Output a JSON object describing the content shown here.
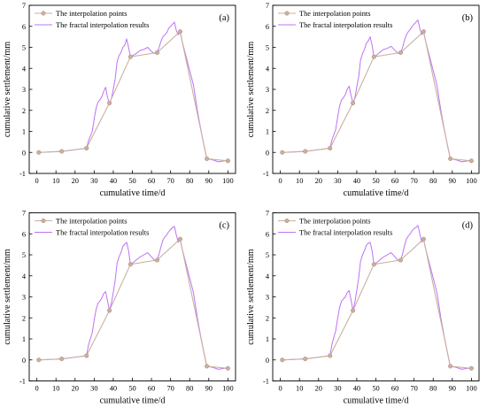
{
  "colors": {
    "points": "#c9b09f",
    "points_stroke": "#a88c7b",
    "fractal": "#bd73f5",
    "axis": "#000000",
    "background": "#ffffff"
  },
  "chart_data": [
    {
      "type": "line",
      "panel_label": "(a)",
      "xlabel": "cumulative time/d",
      "ylabel": "cumulative settlement/mm",
      "xlim": [
        -4,
        104
      ],
      "ylim": [
        -1,
        7
      ],
      "xticks": [
        0,
        10,
        20,
        30,
        40,
        50,
        60,
        70,
        80,
        90,
        100
      ],
      "yticks": [
        -1,
        0,
        1,
        2,
        3,
        4,
        5,
        6,
        7
      ],
      "legend_position": "top-left",
      "grid": false,
      "series": [
        {
          "name": "The interpolation points",
          "marker": "circle",
          "x": [
            1,
            13,
            26,
            38,
            49,
            63,
            75,
            89,
            100
          ],
          "y": [
            0.0,
            0.05,
            0.2,
            2.35,
            4.55,
            4.75,
            5.75,
            -0.3,
            -0.4
          ]
        },
        {
          "name": "The fractal interpolation results",
          "marker": "none",
          "x": [
            1,
            13,
            26,
            27,
            29,
            30,
            31,
            32,
            33,
            34,
            35,
            36,
            37,
            38,
            39,
            40,
            41,
            42,
            43,
            44,
            45,
            46,
            47,
            48,
            49,
            50,
            52,
            54,
            56,
            58,
            60,
            62,
            63,
            64,
            65,
            66,
            67,
            68,
            69,
            70,
            71,
            72,
            73,
            74,
            75,
            76,
            78,
            80,
            82,
            84,
            86,
            88,
            89,
            92,
            95,
            98,
            100
          ],
          "y": [
            0.0,
            0.05,
            0.2,
            0.55,
            1.0,
            1.6,
            2.1,
            2.4,
            2.5,
            2.65,
            2.9,
            3.1,
            2.6,
            2.35,
            2.55,
            3.0,
            3.5,
            4.3,
            4.6,
            4.75,
            5.0,
            5.1,
            5.4,
            5.0,
            4.55,
            4.6,
            4.7,
            4.85,
            4.9,
            5.0,
            4.8,
            4.7,
            4.75,
            5.0,
            5.3,
            5.5,
            5.6,
            5.7,
            5.9,
            6.0,
            6.1,
            6.2,
            5.8,
            5.6,
            5.75,
            5.3,
            4.6,
            3.9,
            3.2,
            2.0,
            1.0,
            0.1,
            -0.3,
            -0.35,
            -0.45,
            -0.4,
            -0.4
          ]
        }
      ]
    },
    {
      "type": "line",
      "panel_label": "(b)",
      "xlabel": "cumulative time/d",
      "ylabel": "cumulative settlement/mm",
      "xlim": [
        -4,
        104
      ],
      "ylim": [
        -1,
        7
      ],
      "xticks": [
        0,
        10,
        20,
        30,
        40,
        50,
        60,
        70,
        80,
        90,
        100
      ],
      "yticks": [
        -1,
        0,
        1,
        2,
        3,
        4,
        5,
        6,
        7
      ],
      "legend_position": "top-left",
      "grid": false,
      "series": [
        {
          "name": "The interpolation points",
          "marker": "circle",
          "x": [
            1,
            13,
            26,
            38,
            49,
            63,
            75,
            89,
            100
          ],
          "y": [
            0.0,
            0.05,
            0.2,
            2.35,
            4.55,
            4.75,
            5.75,
            -0.3,
            -0.4
          ]
        },
        {
          "name": "The fractal interpolation results",
          "marker": "none",
          "x": [
            1,
            13,
            26,
            27,
            29,
            30,
            31,
            32,
            33,
            34,
            35,
            36,
            37,
            38,
            39,
            40,
            41,
            42,
            43,
            44,
            45,
            46,
            47,
            48,
            49,
            50,
            52,
            54,
            56,
            58,
            60,
            62,
            63,
            64,
            65,
            66,
            67,
            68,
            69,
            70,
            71,
            72,
            73,
            74,
            75,
            76,
            78,
            80,
            82,
            84,
            86,
            88,
            89,
            92,
            95,
            98,
            100
          ],
          "y": [
            0.0,
            0.05,
            0.2,
            0.6,
            1.1,
            1.7,
            2.2,
            2.5,
            2.6,
            2.75,
            3.0,
            3.15,
            2.7,
            2.35,
            2.6,
            3.1,
            3.6,
            4.4,
            4.7,
            4.9,
            5.2,
            5.3,
            5.5,
            5.1,
            4.55,
            4.6,
            4.75,
            4.9,
            4.95,
            5.05,
            4.85,
            4.7,
            4.75,
            5.0,
            5.35,
            5.6,
            5.75,
            5.85,
            6.0,
            6.1,
            6.2,
            6.3,
            5.9,
            5.6,
            5.75,
            5.3,
            4.6,
            3.9,
            3.2,
            2.0,
            1.0,
            0.1,
            -0.3,
            -0.35,
            -0.45,
            -0.4,
            -0.4
          ]
        }
      ]
    },
    {
      "type": "line",
      "panel_label": "(c)",
      "xlabel": "cumulative time/d",
      "ylabel": "cumulative settlement/mm",
      "xlim": [
        -4,
        104
      ],
      "ylim": [
        -1,
        7
      ],
      "xticks": [
        0,
        10,
        20,
        30,
        40,
        50,
        60,
        70,
        80,
        90,
        100
      ],
      "yticks": [
        -1,
        0,
        1,
        2,
        3,
        4,
        5,
        6,
        7
      ],
      "legend_position": "top-left",
      "grid": false,
      "series": [
        {
          "name": "The interpolation points",
          "marker": "circle",
          "x": [
            1,
            13,
            26,
            38,
            49,
            63,
            75,
            89,
            100
          ],
          "y": [
            0.0,
            0.05,
            0.2,
            2.35,
            4.55,
            4.75,
            5.75,
            -0.3,
            -0.4
          ]
        },
        {
          "name": "The fractal interpolation results",
          "marker": "none",
          "x": [
            1,
            13,
            26,
            27,
            29,
            30,
            31,
            32,
            33,
            34,
            35,
            36,
            37,
            38,
            39,
            40,
            41,
            42,
            43,
            44,
            45,
            46,
            47,
            48,
            49,
            50,
            52,
            54,
            56,
            58,
            60,
            62,
            63,
            64,
            65,
            66,
            67,
            68,
            69,
            70,
            71,
            72,
            73,
            74,
            75,
            76,
            78,
            80,
            82,
            84,
            86,
            88,
            89,
            92,
            95,
            98,
            100
          ],
          "y": [
            0.0,
            0.05,
            0.2,
            0.7,
            1.3,
            1.9,
            2.4,
            2.7,
            2.8,
            2.95,
            3.15,
            3.25,
            2.8,
            2.35,
            2.7,
            3.2,
            3.8,
            4.6,
            4.9,
            5.1,
            5.4,
            5.5,
            5.6,
            5.2,
            4.55,
            4.6,
            4.75,
            4.9,
            5.0,
            5.1,
            4.9,
            4.7,
            4.75,
            5.05,
            5.4,
            5.7,
            5.85,
            5.95,
            6.1,
            6.2,
            6.3,
            6.35,
            5.95,
            5.6,
            5.75,
            5.3,
            4.6,
            3.9,
            3.2,
            2.0,
            1.0,
            0.1,
            -0.3,
            -0.35,
            -0.45,
            -0.4,
            -0.4
          ]
        }
      ]
    },
    {
      "type": "line",
      "panel_label": "(d)",
      "xlabel": "cumulative time/d",
      "ylabel": "cumulative settlement/mm",
      "xlim": [
        -4,
        104
      ],
      "ylim": [
        -1,
        7
      ],
      "xticks": [
        0,
        10,
        20,
        30,
        40,
        50,
        60,
        70,
        80,
        90,
        100
      ],
      "yticks": [
        -1,
        0,
        1,
        2,
        3,
        4,
        5,
        6,
        7
      ],
      "legend_position": "top-left",
      "grid": false,
      "series": [
        {
          "name": "The interpolation points",
          "marker": "circle",
          "x": [
            1,
            13,
            26,
            38,
            49,
            63,
            75,
            89,
            100
          ],
          "y": [
            0.0,
            0.05,
            0.2,
            2.35,
            4.55,
            4.75,
            5.75,
            -0.3,
            -0.4
          ]
        },
        {
          "name": "The fractal interpolation results",
          "marker": "none",
          "x": [
            1,
            13,
            26,
            27,
            29,
            30,
            31,
            32,
            33,
            34,
            35,
            36,
            37,
            38,
            39,
            40,
            41,
            42,
            43,
            44,
            45,
            46,
            47,
            48,
            49,
            50,
            52,
            54,
            56,
            58,
            60,
            62,
            63,
            64,
            65,
            66,
            67,
            68,
            69,
            70,
            71,
            72,
            73,
            74,
            75,
            76,
            78,
            80,
            82,
            84,
            86,
            88,
            89,
            92,
            95,
            98,
            100
          ],
          "y": [
            0.0,
            0.05,
            0.2,
            0.75,
            1.4,
            2.0,
            2.5,
            2.8,
            2.9,
            3.0,
            3.2,
            3.3,
            2.85,
            2.35,
            2.75,
            3.3,
            3.9,
            4.7,
            5.0,
            5.2,
            5.45,
            5.55,
            5.6,
            5.2,
            4.55,
            4.6,
            4.75,
            4.9,
            5.0,
            5.1,
            4.9,
            4.7,
            4.75,
            5.05,
            5.45,
            5.75,
            5.9,
            6.0,
            6.15,
            6.25,
            6.3,
            6.4,
            6.0,
            5.6,
            5.75,
            5.3,
            4.6,
            3.9,
            3.2,
            2.0,
            1.0,
            0.1,
            -0.3,
            -0.35,
            -0.45,
            -0.4,
            -0.4
          ]
        }
      ]
    }
  ]
}
